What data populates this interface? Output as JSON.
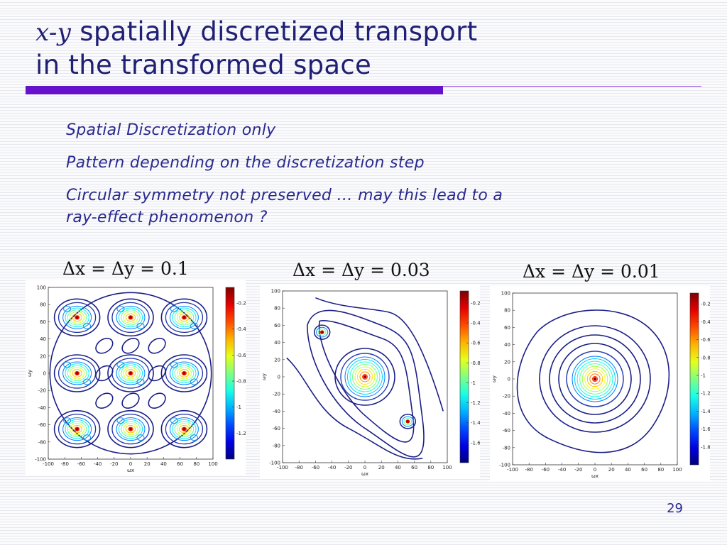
{
  "slide": {
    "title_var": "x-y",
    "title_line1": "spatially discretized transport",
    "title_line2": "in the transformed space",
    "bullets": [
      "Spatial Discretization only",
      "Pattern depending on the discretization step",
      "Circular symmetry not preserved … may this lead to a ray-effect phenomenon ?"
    ],
    "page_number": "29"
  },
  "colors": {
    "title": "#1f1f73",
    "text": "#2a2a8e",
    "accent_bar": "#6611cc",
    "contour": "#1b1f86"
  },
  "plots": [
    {
      "label": "Δx = Δy = 0.1",
      "xlabel": "ωx",
      "ylabel": "ωy",
      "x_ticks": [
        "-100",
        "-80",
        "-60",
        "-40",
        "-20",
        "0",
        "20",
        "40",
        "60",
        "80",
        "100"
      ],
      "y_ticks": [
        "100",
        "80",
        "60",
        "40",
        "20",
        "0",
        "-20",
        "-40",
        "-60",
        "-80",
        "-100"
      ],
      "colorbar_ticks": [
        "-0.2",
        "-0.4",
        "-0.6",
        "-0.8",
        "-1",
        "-1.2"
      ]
    },
    {
      "label": "Δx = Δy = 0.03",
      "xlabel": "ωx",
      "ylabel": "ωy",
      "x_ticks": [
        "-100",
        "-80",
        "-60",
        "-40",
        "-20",
        "0",
        "20",
        "40",
        "60",
        "80",
        "100"
      ],
      "y_ticks": [
        "100",
        "80",
        "60",
        "40",
        "20",
        "0",
        "-20",
        "-40",
        "-60",
        "-80",
        "-100"
      ],
      "colorbar_ticks": [
        "-0.2",
        "-0.4",
        "-0.6",
        "-0.8",
        "-1",
        "-1.2",
        "-1.4",
        "-1.6"
      ]
    },
    {
      "label": "Δx = Δy = 0.01",
      "xlabel": "ωx",
      "ylabel": "ωy",
      "x_ticks": [
        "-100",
        "-80",
        "-60",
        "-40",
        "-20",
        "0",
        "20",
        "40",
        "60",
        "80",
        "100"
      ],
      "y_ticks": [
        "100",
        "80",
        "60",
        "40",
        "20",
        "0",
        "-20",
        "-40",
        "-60",
        "-80",
        "-100"
      ],
      "colorbar_ticks": [
        "-0.2",
        "-0.4",
        "-0.6",
        "-0.8",
        "-1",
        "-1.2",
        "-1.4",
        "-1.6",
        "-1.8"
      ]
    }
  ]
}
